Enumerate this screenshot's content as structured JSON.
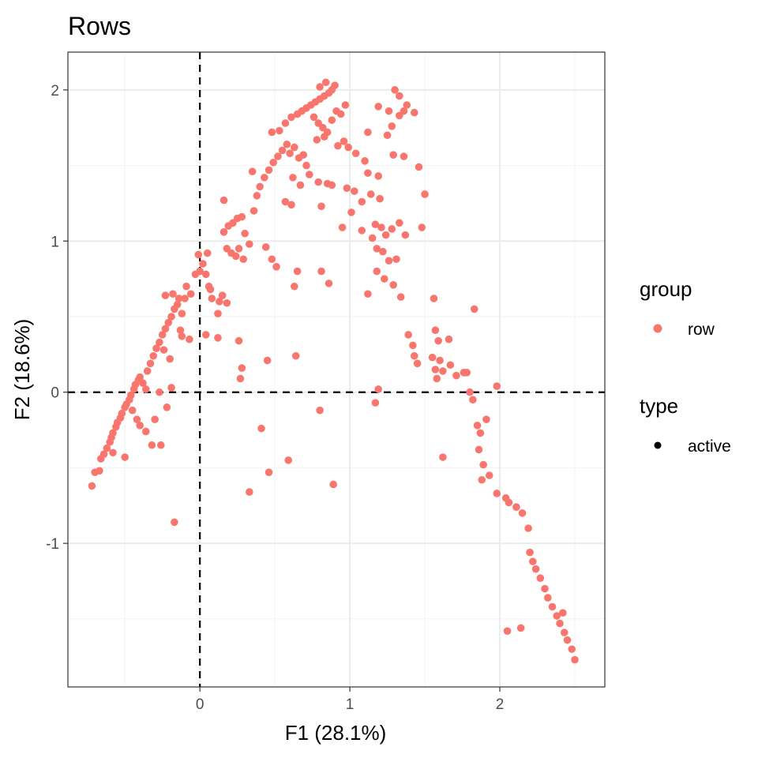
{
  "chart_data": {
    "type": "scatter",
    "title": "Rows",
    "xlabel": "F1 (28.1%)",
    "ylabel": "F2 (18.6%)",
    "xlim": [
      -0.88,
      2.7
    ],
    "ylim": [
      -1.95,
      2.25
    ],
    "xticks": [
      0,
      1,
      2
    ],
    "xtick_labels": [
      "0",
      "1",
      "2"
    ],
    "yticks": [
      -1,
      0,
      1,
      2
    ],
    "ytick_labels": [
      "-1",
      "0",
      "1",
      "2"
    ],
    "grid": true,
    "reference_lines": {
      "x": 0,
      "y": 0,
      "style": "dashed"
    },
    "legend": {
      "placement": "right",
      "groups": [
        {
          "title": "group",
          "items": [
            {
              "label": "row",
              "color": "#F8766D",
              "shape": "circle"
            }
          ]
        },
        {
          "title": "type",
          "items": [
            {
              "label": "active",
              "color": "#000000",
              "shape": "circle"
            }
          ]
        }
      ]
    },
    "series": [
      {
        "name": "row",
        "color": "#F8766D",
        "points": [
          [
            -0.72,
            -0.62
          ],
          [
            -0.7,
            -0.53
          ],
          [
            -0.67,
            -0.52
          ],
          [
            -0.66,
            -0.44
          ],
          [
            -0.64,
            -0.41
          ],
          [
            -0.62,
            -0.37
          ],
          [
            -0.6,
            -0.33
          ],
          [
            -0.59,
            -0.3
          ],
          [
            -0.58,
            -0.27
          ],
          [
            -0.56,
            -0.23
          ],
          [
            -0.55,
            -0.2
          ],
          [
            -0.53,
            -0.17
          ],
          [
            -0.52,
            -0.14
          ],
          [
            -0.5,
            -0.1
          ],
          [
            -0.49,
            -0.08
          ],
          [
            -0.47,
            -0.05
          ],
          [
            -0.46,
            -0.02
          ],
          [
            -0.44,
            0.02
          ],
          [
            -0.43,
            0.05
          ],
          [
            -0.41,
            0.08
          ],
          [
            -0.4,
            0.1
          ],
          [
            -0.38,
            0.06
          ],
          [
            -0.36,
            0.02
          ],
          [
            -0.45,
            -0.12
          ],
          [
            -0.42,
            -0.18
          ],
          [
            -0.4,
            -0.22
          ],
          [
            -0.36,
            -0.26
          ],
          [
            -0.32,
            -0.35
          ],
          [
            -0.5,
            -0.43
          ],
          [
            -0.58,
            -0.4
          ],
          [
            -0.35,
            0.14
          ],
          [
            -0.33,
            0.19
          ],
          [
            -0.31,
            0.24
          ],
          [
            -0.29,
            0.29
          ],
          [
            -0.27,
            0.33
          ],
          [
            -0.25,
            0.38
          ],
          [
            -0.23,
            0.42
          ],
          [
            -0.21,
            0.46
          ],
          [
            -0.19,
            0.5
          ],
          [
            -0.17,
            0.55
          ],
          [
            -0.15,
            0.58
          ],
          [
            -0.23,
            0.64
          ],
          [
            -0.18,
            0.65
          ],
          [
            -0.14,
            0.62
          ],
          [
            -0.12,
            0.52
          ],
          [
            -0.13,
            0.41
          ],
          [
            -0.12,
            0.37
          ],
          [
            -0.09,
            0.7
          ],
          [
            -0.06,
            0.65
          ],
          [
            -0.03,
            0.78
          ],
          [
            0.0,
            0.8
          ],
          [
            0.02,
            0.85
          ],
          [
            0.05,
            0.92
          ],
          [
            0.04,
            0.78
          ],
          [
            0.06,
            0.7
          ],
          [
            0.07,
            0.68
          ],
          [
            0.08,
            0.62
          ],
          [
            0.13,
            0.6
          ],
          [
            0.15,
            0.64
          ],
          [
            0.12,
            0.52
          ],
          [
            0.18,
            0.59
          ],
          [
            0.18,
            0.95
          ],
          [
            0.21,
            0.92
          ],
          [
            0.24,
            0.9
          ],
          [
            0.26,
            0.95
          ],
          [
            0.29,
            0.88
          ],
          [
            0.16,
            1.06
          ],
          [
            0.19,
            1.1
          ],
          [
            0.22,
            1.12
          ],
          [
            0.25,
            1.15
          ],
          [
            0.28,
            1.16
          ],
          [
            0.3,
            1.05
          ],
          [
            0.33,
            0.98
          ],
          [
            0.16,
            1.27
          ],
          [
            0.36,
            1.2
          ],
          [
            0.38,
            1.3
          ],
          [
            0.4,
            1.36
          ],
          [
            0.43,
            1.42
          ],
          [
            0.46,
            1.47
          ],
          [
            0.49,
            1.52
          ],
          [
            0.52,
            1.56
          ],
          [
            0.55,
            1.6
          ],
          [
            0.58,
            1.64
          ],
          [
            0.6,
            1.58
          ],
          [
            0.63,
            1.62
          ],
          [
            0.66,
            1.55
          ],
          [
            0.69,
            1.57
          ],
          [
            0.71,
            1.5
          ],
          [
            0.73,
            1.44
          ],
          [
            0.67,
            1.37
          ],
          [
            0.62,
            1.42
          ],
          [
            0.35,
            1.46
          ],
          [
            0.48,
            1.72
          ],
          [
            0.53,
            1.73
          ],
          [
            0.57,
            1.78
          ],
          [
            0.61,
            1.82
          ],
          [
            0.65,
            1.84
          ],
          [
            0.68,
            1.86
          ],
          [
            0.71,
            1.88
          ],
          [
            0.74,
            1.9
          ],
          [
            0.77,
            1.92
          ],
          [
            0.8,
            1.94
          ],
          [
            0.83,
            1.96
          ],
          [
            0.86,
            1.98
          ],
          [
            0.88,
            2.0
          ],
          [
            0.9,
            2.03
          ],
          [
            0.8,
            2.02
          ],
          [
            0.84,
            2.05
          ],
          [
            0.76,
            1.82
          ],
          [
            0.79,
            1.78
          ],
          [
            0.82,
            1.75
          ],
          [
            0.85,
            1.72
          ],
          [
            0.88,
            1.8
          ],
          [
            0.91,
            1.86
          ],
          [
            0.94,
            1.84
          ],
          [
            0.97,
            1.9
          ],
          [
            0.78,
            1.67
          ],
          [
            0.83,
            1.69
          ],
          [
            0.92,
            1.63
          ],
          [
            0.96,
            1.66
          ],
          [
            0.99,
            1.62
          ],
          [
            1.04,
            1.58
          ],
          [
            1.1,
            1.53
          ],
          [
            0.57,
            1.26
          ],
          [
            0.61,
            1.24
          ],
          [
            0.79,
            1.39
          ],
          [
            0.85,
            1.38
          ],
          [
            0.88,
            1.37
          ],
          [
            0.98,
            1.35
          ],
          [
            1.03,
            1.33
          ],
          [
            1.08,
            1.26
          ],
          [
            1.14,
            1.31
          ],
          [
            1.2,
            1.28
          ],
          [
            1.01,
            1.19
          ],
          [
            1.17,
            1.11
          ],
          [
            1.21,
            1.09
          ],
          [
            1.24,
            1.04
          ],
          [
            1.28,
            1.08
          ],
          [
            1.33,
            1.12
          ],
          [
            1.37,
            1.04
          ],
          [
            1.15,
            1.02
          ],
          [
            1.18,
            0.95
          ],
          [
            1.22,
            0.93
          ],
          [
            1.26,
            0.87
          ],
          [
            1.31,
            0.88
          ],
          [
            1.18,
            0.8
          ],
          [
            1.23,
            0.75
          ],
          [
            1.29,
            0.71
          ],
          [
            1.34,
            0.63
          ],
          [
            1.12,
            0.65
          ],
          [
            0.81,
            1.23
          ],
          [
            0.95,
            1.09
          ],
          [
            1.08,
            1.07
          ],
          [
            1.12,
            1.45
          ],
          [
            1.19,
            1.43
          ],
          [
            1.12,
            1.72
          ],
          [
            1.25,
            1.7
          ],
          [
            1.28,
            1.76
          ],
          [
            1.33,
            1.83
          ],
          [
            1.36,
            1.86
          ],
          [
            1.43,
            1.85
          ],
          [
            1.19,
            1.89
          ],
          [
            1.26,
            1.86
          ],
          [
            1.3,
            2.0
          ],
          [
            1.33,
            1.96
          ],
          [
            1.38,
            1.9
          ],
          [
            1.29,
            1.57
          ],
          [
            1.36,
            1.56
          ],
          [
            1.46,
            1.49
          ],
          [
            1.5,
            1.31
          ],
          [
            1.48,
            1.09
          ],
          [
            1.39,
            0.38
          ],
          [
            1.42,
            0.31
          ],
          [
            1.43,
            0.24
          ],
          [
            1.45,
            0.19
          ],
          [
            1.56,
            0.62
          ],
          [
            1.57,
            0.41
          ],
          [
            1.59,
            0.34
          ],
          [
            1.55,
            0.23
          ],
          [
            1.6,
            0.21
          ],
          [
            1.57,
            0.15
          ],
          [
            1.66,
            0.35
          ],
          [
            1.67,
            0.18
          ],
          [
            1.71,
            0.11
          ],
          [
            1.76,
            0.13
          ],
          [
            1.58,
            0.09
          ],
          [
            1.62,
            0.14
          ],
          [
            1.78,
            0.13
          ],
          [
            1.8,
            0.0
          ],
          [
            1.82,
            -0.05
          ],
          [
            1.85,
            -0.22
          ],
          [
            1.87,
            -0.27
          ],
          [
            1.91,
            -0.18
          ],
          [
            1.98,
            0.04
          ],
          [
            1.83,
            0.55
          ],
          [
            1.86,
            -0.38
          ],
          [
            1.89,
            -0.48
          ],
          [
            1.88,
            -0.58
          ],
          [
            1.93,
            -0.55
          ],
          [
            1.98,
            -0.67
          ],
          [
            2.04,
            -0.7
          ],
          [
            2.06,
            -0.73
          ],
          [
            2.11,
            -0.76
          ],
          [
            2.15,
            -0.8
          ],
          [
            2.19,
            -0.9
          ],
          [
            2.2,
            -1.06
          ],
          [
            2.22,
            -1.12
          ],
          [
            2.24,
            -1.17
          ],
          [
            2.27,
            -1.23
          ],
          [
            2.3,
            -1.3
          ],
          [
            2.32,
            -1.36
          ],
          [
            2.35,
            -1.42
          ],
          [
            2.38,
            -1.48
          ],
          [
            2.4,
            -1.53
          ],
          [
            2.43,
            -1.59
          ],
          [
            2.45,
            -1.64
          ],
          [
            2.48,
            -1.7
          ],
          [
            2.5,
            -1.77
          ],
          [
            2.42,
            -1.46
          ],
          [
            2.05,
            -1.58
          ],
          [
            2.14,
            -1.56
          ],
          [
            1.62,
            -0.43
          ],
          [
            1.19,
            0.02
          ],
          [
            1.17,
            -0.07
          ],
          [
            0.89,
            -0.61
          ],
          [
            0.8,
            -0.12
          ],
          [
            0.64,
            0.24
          ],
          [
            0.59,
            -0.45
          ],
          [
            0.46,
            -0.53
          ],
          [
            0.45,
            0.21
          ],
          [
            0.41,
            -0.24
          ],
          [
            0.33,
            -0.66
          ],
          [
            0.27,
            0.09
          ],
          [
            0.28,
            0.16
          ],
          [
            0.26,
            0.34
          ],
          [
            0.12,
            0.36
          ],
          [
            0.04,
            0.38
          ],
          [
            -0.07,
            0.35
          ],
          [
            -0.17,
            -0.86
          ],
          [
            -0.26,
            -0.35
          ],
          [
            -0.3,
            -0.18
          ],
          [
            -0.27,
            0.0
          ],
          [
            -0.22,
            -0.1
          ],
          [
            -0.19,
            0.03
          ],
          [
            -0.2,
            0.22
          ],
          [
            -0.24,
            0.28
          ],
          [
            -0.1,
            0.62
          ],
          [
            -0.01,
            0.91
          ],
          [
            0.63,
            0.7
          ],
          [
            0.81,
            0.8
          ],
          [
            0.48,
            0.88
          ],
          [
            0.51,
            0.83
          ],
          [
            0.65,
            0.8
          ],
          [
            0.44,
            0.96
          ],
          [
            0.86,
            0.72
          ]
        ]
      }
    ]
  }
}
